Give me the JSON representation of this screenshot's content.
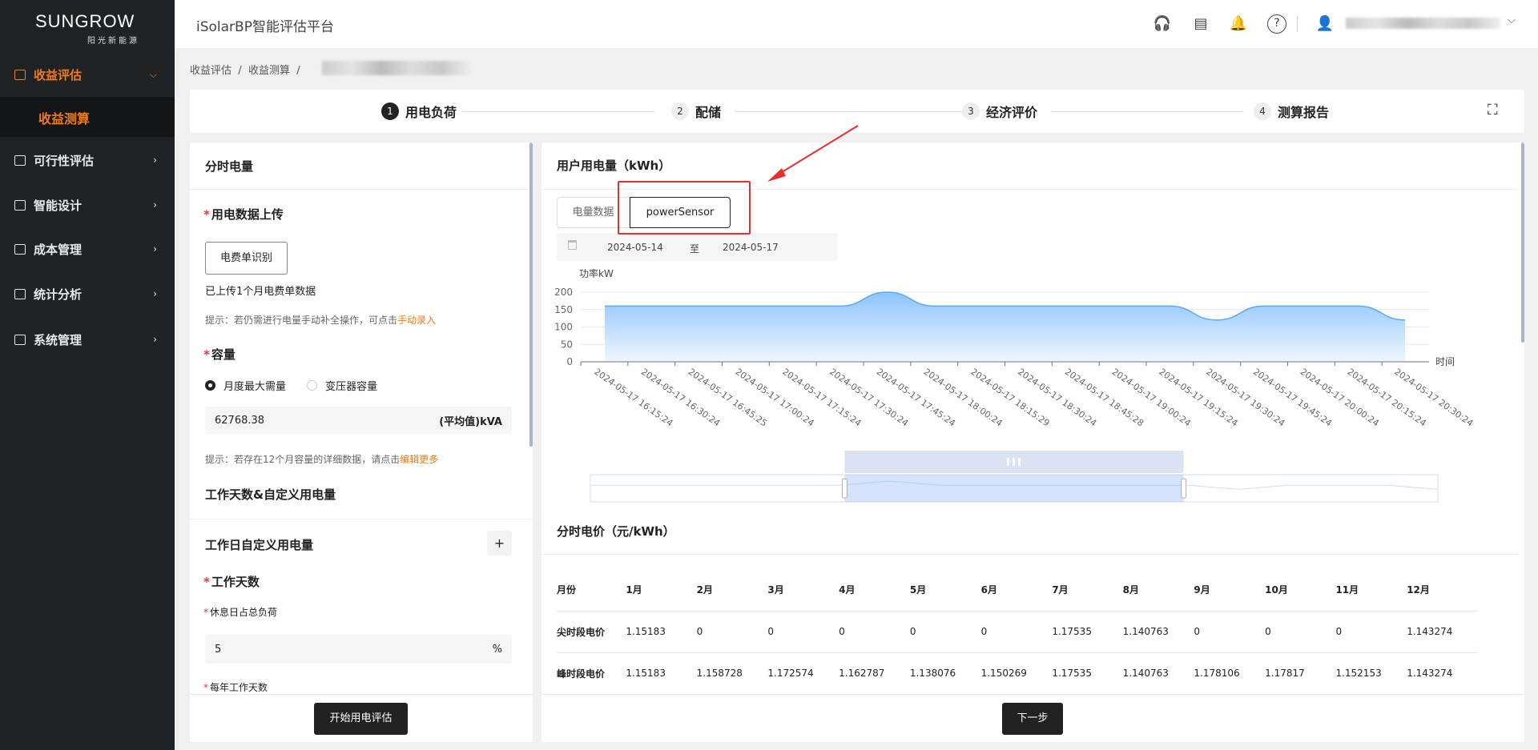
{
  "sidebar": {
    "logo": "SUNGROW",
    "logo_sub": "阳光新能源",
    "items": [
      {
        "label": "收益评估",
        "active": true,
        "icon": "revenue-icon"
      },
      {
        "label": "可行性评估",
        "icon": "chart-icon"
      },
      {
        "label": "智能设计",
        "icon": "design-icon"
      },
      {
        "label": "成本管理",
        "icon": "cost-icon"
      },
      {
        "label": "统计分析",
        "icon": "stats-icon"
      },
      {
        "label": "系统管理",
        "icon": "system-icon"
      }
    ],
    "sub_item": "收益测算"
  },
  "header": {
    "title": "iSolarBP智能评估平台",
    "icons": [
      "headset-icon",
      "document-icon",
      "bell-icon",
      "help-icon",
      "user-icon"
    ]
  },
  "breadcrumb": [
    "收益评估",
    "收益测算"
  ],
  "steps": [
    {
      "n": "1",
      "label": "用电负荷"
    },
    {
      "n": "2",
      "label": "配储"
    },
    {
      "n": "3",
      "label": "经济评价"
    },
    {
      "n": "4",
      "label": "测算报告"
    }
  ],
  "left": {
    "title": "分时电量",
    "upload_label": "用电数据上传",
    "bill_button": "电费单识别",
    "uploaded_text": "已上传1个月电费单数据",
    "hint1": "提示：若仍需进行电量手动补全操作，可点击",
    "hint1_link": "手动录入",
    "capacity_label": "容量",
    "radio1": "月度最大需量",
    "radio2": "变压器容量",
    "capacity_value": "62768.38",
    "capacity_unit": "(平均值)kVA",
    "hint2": "提示：若存在12个月容量的详细数据，请点击",
    "hint2_link": "编辑更多",
    "workdays_title": "工作天数&自定义用电量",
    "custom_title": "工作日自定义用电量",
    "add": "+",
    "workdays_label": "工作天数",
    "rest_label": "休息日占总负荷",
    "rest_value": "5",
    "rest_unit": "%",
    "yearly_label": "每年工作天数",
    "start_button": "开始用电评估"
  },
  "right": {
    "title": "用户用电量（kWh）",
    "tabs": [
      "电量数据",
      "powerSensor"
    ],
    "active_tab": "powerSensor",
    "date_from": "2024-05-14",
    "date_sep": "至",
    "date_to": "2024-05-17",
    "price_title": "分时电价（元/kWh）",
    "price_headers": [
      "月份",
      "1月",
      "2月",
      "3月",
      "4月",
      "5月",
      "6月",
      "7月",
      "8月",
      "9月",
      "10月",
      "11月",
      "12月"
    ],
    "price_rows": [
      [
        "尖时段电价",
        "1.15183",
        "0",
        "0",
        "0",
        "0",
        "0",
        "1.17535",
        "1.140763",
        "0",
        "0",
        "0",
        "1.143274"
      ],
      [
        "峰时段电价",
        "1.15183",
        "1.158728",
        "1.172574",
        "1.162787",
        "1.138076",
        "1.150269",
        "1.17535",
        "1.140763",
        "1.178106",
        "1.17817",
        "1.152153",
        "1.143274"
      ]
    ],
    "next_button": "下一步"
  },
  "chart_data": {
    "type": "area",
    "ylabel": "功率kW",
    "xlabel": "时间",
    "ylim": [
      0,
      200
    ],
    "yticks": [
      0,
      50,
      100,
      150,
      200
    ],
    "grid": true,
    "x": [
      "2024-05-17 16:15:24",
      "2024-05-17 16:30:24",
      "2024-05-17 16:45:25",
      "2024-05-17 17:00:24",
      "2024-05-17 17:15:24",
      "2024-05-17 17:30:24",
      "2024-05-17 17:45:24",
      "2024-05-17 18:00:24",
      "2024-05-17 18:15:29",
      "2024-05-17 18:30:24",
      "2024-05-17 18:45:28",
      "2024-05-17 19:00:24",
      "2024-05-17 19:15:24",
      "2024-05-17 19:30:24",
      "2024-05-17 19:45:24",
      "2024-05-17 20:00:24",
      "2024-05-17 20:15:24",
      "2024-05-17 20:30:24"
    ],
    "values": [
      160,
      160,
      160,
      160,
      160,
      160,
      200,
      160,
      160,
      160,
      160,
      160,
      160,
      120,
      160,
      160,
      160,
      120
    ],
    "color": "#5aa9f5",
    "zoom_range_percent": [
      30,
      70
    ]
  },
  "colors": {
    "accent": "#f57a14",
    "sidebar": "#202326",
    "highlight": "#e53030"
  }
}
